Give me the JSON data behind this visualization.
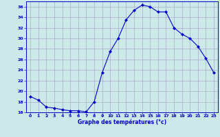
{
  "hours": [
    0,
    1,
    2,
    3,
    4,
    5,
    6,
    7,
    8,
    9,
    10,
    11,
    12,
    13,
    14,
    15,
    16,
    17,
    18,
    19,
    20,
    21,
    22,
    23
  ],
  "temps": [
    19.0,
    18.3,
    17.0,
    16.8,
    16.5,
    16.3,
    16.3,
    16.1,
    18.0,
    23.5,
    27.5,
    30.0,
    33.5,
    35.3,
    36.3,
    36.0,
    35.0,
    35.0,
    32.0,
    30.8,
    30.0,
    28.5,
    26.2,
    23.5
  ],
  "line_color": "#0000cc",
  "marker": "D",
  "marker_size": 2.0,
  "bg_color": "#cce8e8",
  "grid_color": "#aaaacc",
  "xlabel": "Graphe des températures (°c)",
  "xlabel_color": "#0000cc",
  "tick_color": "#0000cc",
  "ylim": [
    16,
    37
  ],
  "yticks": [
    16,
    18,
    20,
    22,
    24,
    26,
    28,
    30,
    32,
    34,
    36
  ],
  "xlim": [
    -0.5,
    23.5
  ],
  "xticks": [
    0,
    1,
    2,
    3,
    4,
    5,
    6,
    7,
    8,
    9,
    10,
    11,
    12,
    13,
    14,
    15,
    16,
    17,
    18,
    19,
    20,
    21,
    22,
    23
  ]
}
